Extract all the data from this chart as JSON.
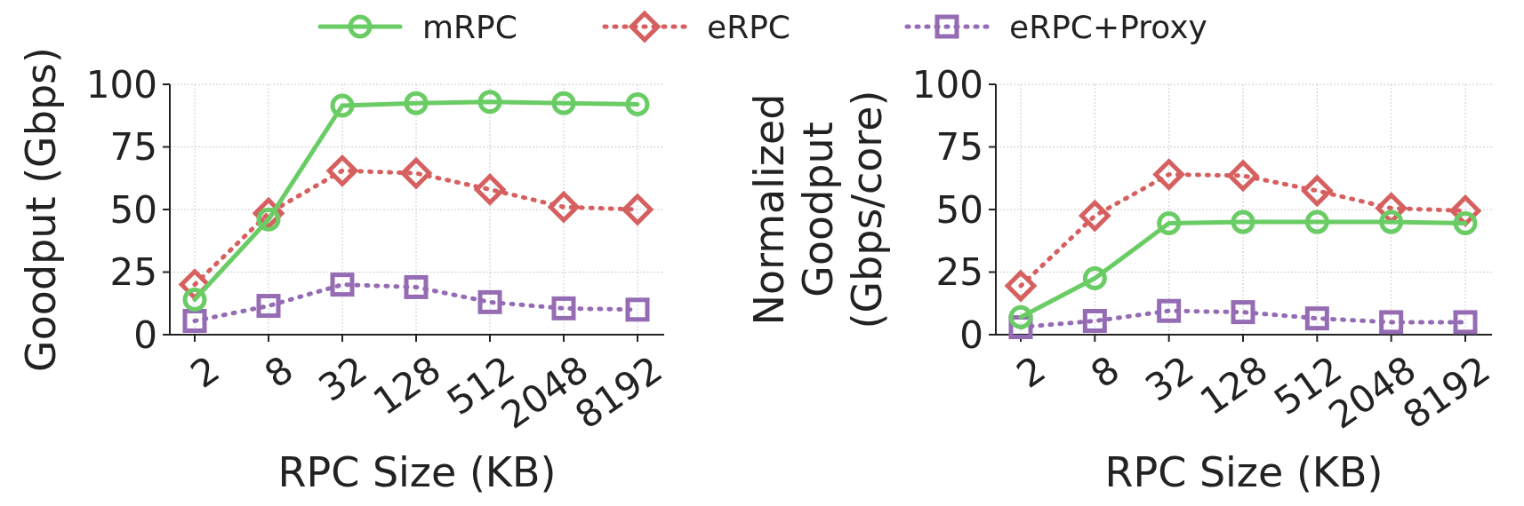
{
  "chart_data": [
    {
      "type": "line",
      "xlabel": "RPC Size (KB)",
      "ylabel": "Goodput (Gbps)",
      "categories": [
        "2",
        "8",
        "32",
        "128",
        "512",
        "2048",
        "8192"
      ],
      "ylim": [
        0,
        100
      ],
      "yticks": [
        0,
        25,
        50,
        75,
        100
      ],
      "grid": true,
      "legend": "top",
      "series": [
        {
          "name": "mRPC",
          "color": "#6acc64",
          "marker": "circle",
          "line_style": "solid",
          "values": [
            14,
            46,
            91.5,
            92.5,
            93,
            92.5,
            92
          ]
        },
        {
          "name": "eRPC",
          "color": "#d65f5f",
          "marker": "diamond",
          "line_style": "dotted",
          "values": [
            20,
            48.5,
            65.5,
            64.5,
            58,
            51,
            50
          ]
        },
        {
          "name": "eRPC+Proxy",
          "color": "#956cb4",
          "marker": "square",
          "line_style": "dotted",
          "values": [
            5.5,
            11.5,
            20,
            19,
            13,
            10.5,
            10
          ]
        }
      ]
    },
    {
      "type": "line",
      "xlabel": "RPC Size (KB)",
      "ylabel": "Normalized\nGoodput\n(Gbps/core)",
      "categories": [
        "2",
        "8",
        "32",
        "128",
        "512",
        "2048",
        "8192"
      ],
      "ylim": [
        0,
        100
      ],
      "yticks": [
        0,
        25,
        50,
        75,
        100
      ],
      "grid": true,
      "series": [
        {
          "color": "#6acc64",
          "marker": "circle",
          "line_style": "solid",
          "values": [
            7,
            22.5,
            44.5,
            45,
            45,
            45,
            44.5
          ]
        },
        {
          "color": "#d65f5f",
          "marker": "diamond",
          "line_style": "dotted",
          "values": [
            19.5,
            47.5,
            64,
            63.5,
            57.5,
            50.5,
            49.5
          ]
        },
        {
          "color": "#956cb4",
          "marker": "square",
          "line_style": "dotted",
          "values": [
            3,
            5.5,
            9.5,
            9,
            6.5,
            5,
            5
          ]
        }
      ]
    }
  ]
}
